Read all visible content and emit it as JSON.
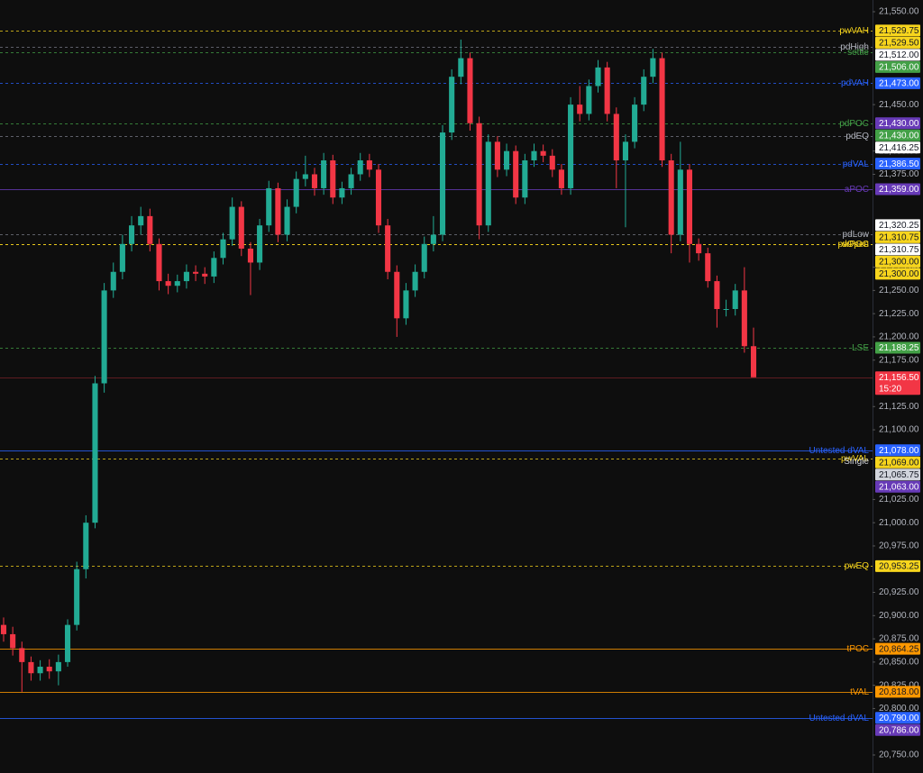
{
  "chart_data": {
    "type": "candlestick",
    "ylim": [
      20750,
      21550
    ],
    "yticks": [
      {
        "value": 21550,
        "label": "21,550.00"
      },
      {
        "value": 21450,
        "label": "21,450.00"
      },
      {
        "value": 21400,
        "label": "21,400.00"
      },
      {
        "value": 21375,
        "label": "21,375.00"
      },
      {
        "value": 21275,
        "label": "21,275.00"
      },
      {
        "value": 21250,
        "label": "21,250.00"
      },
      {
        "value": 21225,
        "label": "21,225.00"
      },
      {
        "value": 21200,
        "label": "21,200.00"
      },
      {
        "value": 21175,
        "label": "21,175.00"
      },
      {
        "value": 21125,
        "label": "21,125.00"
      },
      {
        "value": 21100,
        "label": "21,100.00"
      },
      {
        "value": 21025,
        "label": "21,025.00"
      },
      {
        "value": 21000,
        "label": "21,000.00"
      },
      {
        "value": 20975,
        "label": "20,975.00"
      },
      {
        "value": 20925,
        "label": "20,925.00"
      },
      {
        "value": 20900,
        "label": "20,900.00"
      },
      {
        "value": 20875,
        "label": "20,875.00"
      },
      {
        "value": 20850,
        "label": "20,850.00"
      },
      {
        "value": 20825,
        "label": "20,825.00"
      },
      {
        "value": 20800,
        "label": "20,800.00"
      },
      {
        "value": 20750,
        "label": "20,750.00"
      }
    ],
    "up_color": "#22ab94",
    "down_color": "#f23645",
    "open": [
      20890,
      20880,
      20865,
      20850,
      20838,
      20845,
      20840,
      20850,
      20890,
      20950,
      21000,
      21150,
      21250,
      21270,
      21300,
      21320,
      21330,
      21300,
      21260,
      21255,
      21260,
      21270,
      21268,
      21265,
      21285,
      21305,
      21340,
      21295,
      21280,
      21320,
      21360,
      21310,
      21340,
      21370,
      21375,
      21360,
      21390,
      21350,
      21360,
      21375,
      21390,
      21380,
      21320,
      21270,
      21220,
      21250,
      21270,
      21300,
      21310,
      21420,
      21480,
      21500,
      21430,
      21320,
      21410,
      21380,
      21400,
      21350,
      21390,
      21400,
      21395,
      21380,
      21360,
      21450,
      21440,
      21470,
      21490,
      21440,
      21390,
      21410,
      21450,
      21480,
      21500,
      21390,
      21310,
      21380,
      21300,
      21290,
      21260,
      21230,
      21230,
      21250,
      21190
    ],
    "high": [
      20898,
      20888,
      20872,
      20856,
      20852,
      20853,
      20858,
      20896,
      20958,
      21008,
      21158,
      21258,
      21280,
      21310,
      21330,
      21340,
      21338,
      21306,
      21268,
      21267,
      21278,
      21277,
      21275,
      21292,
      21312,
      21350,
      21346,
      21302,
      21327,
      21368,
      21366,
      21348,
      21378,
      21395,
      21382,
      21398,
      21396,
      21367,
      21382,
      21398,
      21397,
      21386,
      21327,
      21277,
      21258,
      21278,
      21308,
      21330,
      21428,
      21488,
      21520,
      21506,
      21437,
      21418,
      21416,
      21408,
      21406,
      21397,
      21408,
      21407,
      21402,
      21386,
      21458,
      21470,
      21477,
      21498,
      21496,
      21447,
      21418,
      21458,
      21488,
      21510,
      21506,
      21397,
      21410,
      21386,
      21306,
      21296,
      21266,
      21240,
      21257,
      21275,
      21210
    ],
    "low": [
      20872,
      20857,
      20818,
      20830,
      20830,
      20832,
      20825,
      20845,
      20884,
      20940,
      20994,
      21140,
      21242,
      21262,
      21292,
      21310,
      21292,
      21250,
      21246,
      21248,
      21252,
      21260,
      21257,
      21258,
      21278,
      21298,
      21287,
      21245,
      21272,
      21313,
      21302,
      21303,
      21333,
      21362,
      21352,
      21353,
      21343,
      21343,
      21353,
      21368,
      21372,
      21312,
      21262,
      21200,
      21213,
      21243,
      21263,
      21292,
      21303,
      21412,
      21472,
      21422,
      21305,
      21313,
      21372,
      21373,
      21343,
      21343,
      21383,
      21388,
      21372,
      21353,
      21353,
      21432,
      21433,
      21463,
      21432,
      21360,
      21318,
      21403,
      21443,
      21473,
      21383,
      21290,
      21303,
      21280,
      21282,
      21253,
      21210,
      21222,
      21223,
      21183,
      21156.5
    ],
    "close": [
      20880,
      20865,
      20850,
      20838,
      20845,
      20840,
      20850,
      20890,
      20950,
      21000,
      21150,
      21250,
      21270,
      21300,
      21320,
      21330,
      21300,
      21260,
      21255,
      21260,
      21270,
      21268,
      21265,
      21285,
      21305,
      21340,
      21295,
      21280,
      21320,
      21360,
      21310,
      21340,
      21370,
      21375,
      21360,
      21390,
      21350,
      21360,
      21375,
      21390,
      21380,
      21320,
      21270,
      21220,
      21250,
      21270,
      21300,
      21310,
      21420,
      21480,
      21500,
      21430,
      21320,
      21410,
      21380,
      21400,
      21350,
      21390,
      21400,
      21395,
      21380,
      21360,
      21450,
      21440,
      21470,
      21490,
      21440,
      21390,
      21410,
      21450,
      21480,
      21500,
      21390,
      21310,
      21380,
      21300,
      21290,
      21260,
      21230,
      21230,
      21250,
      21190,
      21156.5
    ],
    "levels": [
      {
        "label": "pwVAH",
        "value": 21529.75,
        "value_label": "21,529.75",
        "color": "#f7d51d",
        "line": "dashed"
      },
      {
        "value": 21529.5,
        "value_label": "21,529.50",
        "color": "#f7d51d",
        "line": "none"
      },
      {
        "label": "pdHigh",
        "value": 21512,
        "value_label": "21,512.00",
        "color": "#ffffff",
        "line": "dashed"
      },
      {
        "label": "settle",
        "value": 21506,
        "value_label": "21,506.00",
        "color": "#43a047",
        "line": "dashed"
      },
      {
        "label": "pdVAH",
        "value": 21473,
        "value_label": "21,473.00",
        "color": "#2962ff",
        "line": "dashed"
      },
      {
        "value": 21430,
        "value_label": "21,430.00",
        "color": "#673ab7",
        "line": "none"
      },
      {
        "label": "pdPOC",
        "value": 21430,
        "value_label": "21,430.00",
        "color": "#43a047",
        "line": "dashed"
      },
      {
        "label": "pdEQ",
        "value": 21416.25,
        "value_label": "21,416.25",
        "color": "#ffffff",
        "line": "dashed"
      },
      {
        "label": "pdVAL",
        "value": 21386.5,
        "value_label": "21,386.50",
        "color": "#2962ff",
        "line": "dashed"
      },
      {
        "label": "aPOC",
        "value": 21359,
        "value_label": "21,359.00",
        "color": "#673ab7",
        "line": "solid"
      },
      {
        "value": 21320.25,
        "value_label": "21,320.25",
        "color": "#ffffff",
        "line": "none"
      },
      {
        "value": 21310.75,
        "value_label": "21,310.75",
        "color": "#f7d51d",
        "line": "none"
      },
      {
        "label": "pdLow",
        "value": 21310.75,
        "value_label": "21,310.75",
        "color": "#ffffff",
        "line": "dashed"
      },
      {
        "label": "dOpen",
        "value": 21300,
        "value_label": "21,300.00",
        "color": "#f7d51d",
        "line": "dashed"
      },
      {
        "label": "pwPOC",
        "value": 21300,
        "value_label": "21,300.00",
        "color": "#f7d51d",
        "line": "dashed"
      },
      {
        "label": "LSE",
        "value": 21188.25,
        "value_label": "21,188.25",
        "color": "#43a047",
        "line": "dashed"
      },
      {
        "label": "Untested dVAL",
        "value": 21078,
        "value_label": "21,078.00",
        "color": "#2962ff",
        "line": "solid"
      },
      {
        "label": "pwVAL",
        "value": 21069,
        "value_label": "21,069.00",
        "color": "#f7d51d",
        "line": "dashed"
      },
      {
        "label": "Single",
        "value": 21065.75,
        "value_label": "21,065.75",
        "color": "#d1d4dc",
        "line": "none"
      },
      {
        "value": 21063,
        "value_label": "21,063.00",
        "color": "#673ab7",
        "line": "none"
      },
      {
        "label": "pwEQ",
        "value": 20953.25,
        "value_label": "20,953.25",
        "color": "#f7d51d",
        "line": "dashed"
      },
      {
        "label": "tPOC",
        "value": 20864.25,
        "value_label": "20,864.25",
        "color": "#ff9800",
        "line": "solid"
      },
      {
        "label": "tVAL",
        "value": 20818,
        "value_label": "20,818.00",
        "color": "#ff9800",
        "line": "solid"
      },
      {
        "label": "Untested dVAL",
        "value": 20790,
        "value_label": "20,790.00",
        "color": "#2962ff",
        "line": "solid"
      },
      {
        "value": 20786,
        "value_label": "20,786.00",
        "color": "#673ab7",
        "line": "none"
      }
    ],
    "current": {
      "value": 21156.5,
      "value_label": "21,156.50",
      "countdown": "15:20",
      "color": "#f23645"
    }
  }
}
